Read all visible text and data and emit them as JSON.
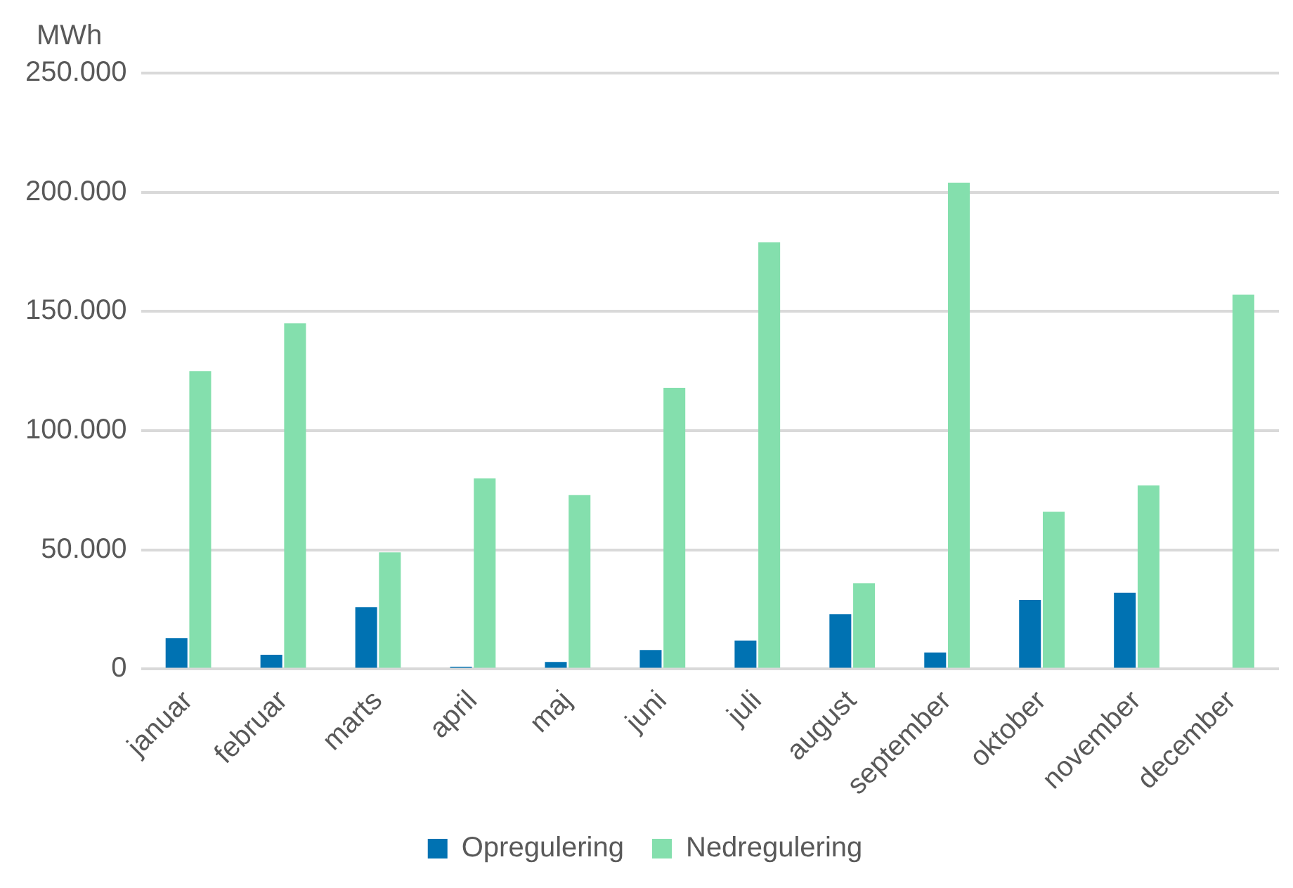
{
  "chart_data": {
    "type": "bar",
    "ylabel": "MWh",
    "categories": [
      "januar",
      "februar",
      "marts",
      "april",
      "maj",
      "juni",
      "juli",
      "august",
      "september",
      "oktober",
      "november",
      "december"
    ],
    "series": [
      {
        "name": "Opregulering",
        "color": "#0072b2",
        "values": [
          13000,
          6000,
          26000,
          1000,
          3000,
          8000,
          12000,
          23000,
          7000,
          29000,
          32000,
          null
        ]
      },
      {
        "name": "Nedregulering",
        "color": "#84dfad",
        "values": [
          125000,
          145000,
          49000,
          80000,
          73000,
          118000,
          179000,
          36000,
          204000,
          66000,
          77000,
          157000
        ]
      }
    ],
    "ylim": [
      0,
      250000
    ],
    "yticks": [
      {
        "value": 0,
        "label": "0"
      },
      {
        "value": 50000,
        "label": "50.000"
      },
      {
        "value": 100000,
        "label": "100.000"
      },
      {
        "value": 150000,
        "label": "150.000"
      },
      {
        "value": 200000,
        "label": "200.000"
      },
      {
        "value": 250000,
        "label": "250.000"
      }
    ],
    "grid": "y",
    "legend": "bottom"
  }
}
